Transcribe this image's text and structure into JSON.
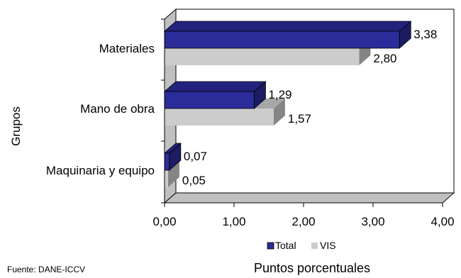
{
  "chart_data": {
    "type": "bar",
    "orientation": "horizontal",
    "three_d": true,
    "categories": [
      "Materiales",
      "Mano de obra",
      "Maquinaria y equipo"
    ],
    "series": [
      {
        "name": "Total",
        "values": [
          3.38,
          1.29,
          0.07
        ],
        "color": "#2b2b99",
        "labels": [
          "3,38",
          "1,29",
          "0,07"
        ]
      },
      {
        "name": "VIS",
        "values": [
          2.8,
          1.57,
          0.05
        ],
        "color": "#cccccc",
        "labels": [
          "2,80",
          "1,57",
          "0,05"
        ]
      }
    ],
    "xlim": [
      0,
      4
    ],
    "x_ticks": [
      0,
      1,
      2,
      3,
      4
    ],
    "x_tick_labels": [
      "0,00",
      "1,00",
      "2,00",
      "3,00",
      "4,00"
    ],
    "xlabel": "Puntos porcentuales",
    "ylabel": "Grupos",
    "legend_placement": "bottom",
    "grid": false
  },
  "source_note": "Fuente:  DANE-ICCV"
}
